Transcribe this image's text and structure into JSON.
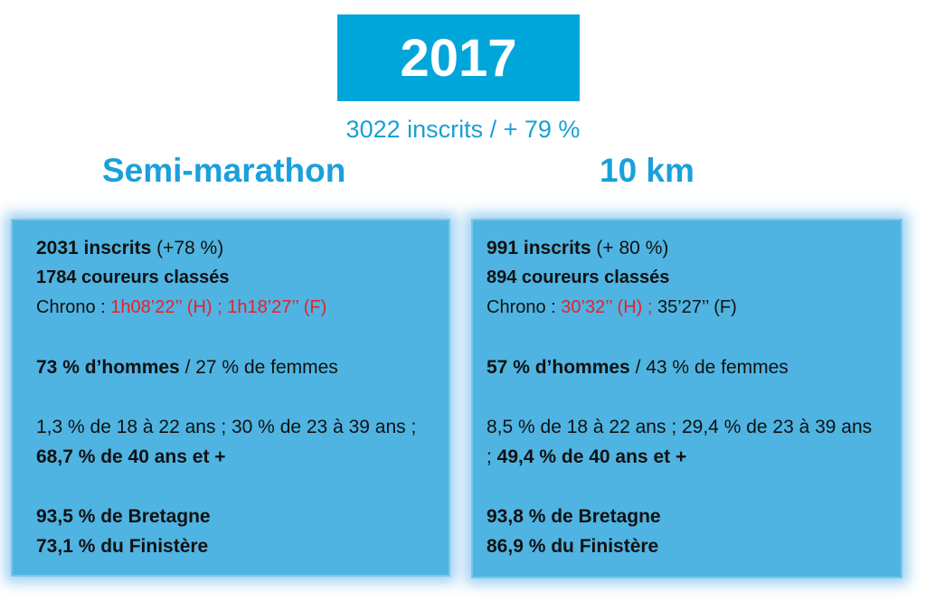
{
  "header": {
    "year": "2017",
    "subtitle": "3022 inscrits / + 79 %"
  },
  "columns": {
    "semi": {
      "title": "Semi-marathon",
      "inscrits_bold": "2031 inscrits",
      "inscrits_rest": " (+78 %)",
      "classes": "1784 coureurs classés",
      "chrono_label": "Chrono : ",
      "chrono_value": "1h08’22’’ (H) ; 1h18’27’’ (F)",
      "hommes_bold": "73 % d’hommes",
      "femmes_rest": " / 27 % de femmes",
      "ages_text": "1,3 % de 18 à 22 ans ; 30 % de 23 à 39 ans ; ",
      "ages_bold": "68,7 % de 40 ans et +",
      "bretagne": "93,5 % de Bretagne",
      "finistere": "73,1 % du Finistère"
    },
    "dix_km": {
      "title": "10 km",
      "inscrits_bold": "991 inscrits",
      "inscrits_rest": " (+ 80 %)",
      "classes": "894 coureurs classés",
      "chrono_label": "Chrono : ",
      "chrono_red": "30’32’’ (H) ;",
      "chrono_rest": " 35’27’’ (F)",
      "hommes_bold": "57 % d’hommes",
      "femmes_rest": " / 43 % de femmes",
      "ages_text": "8,5 % de 18 à 22 ans ; 29,4 % de 23 à 39 ans ; ",
      "ages_bold": "49,4 % de 40 ans et +",
      "bretagne": "93,8 % de Bretagne",
      "finistere": "86,9 % du Finistère"
    }
  },
  "colors": {
    "year_box": "#00a6d9",
    "heading": "#1aa0dc",
    "card_bg": "#4fb4e2",
    "highlight_red": "#e8202a"
  }
}
